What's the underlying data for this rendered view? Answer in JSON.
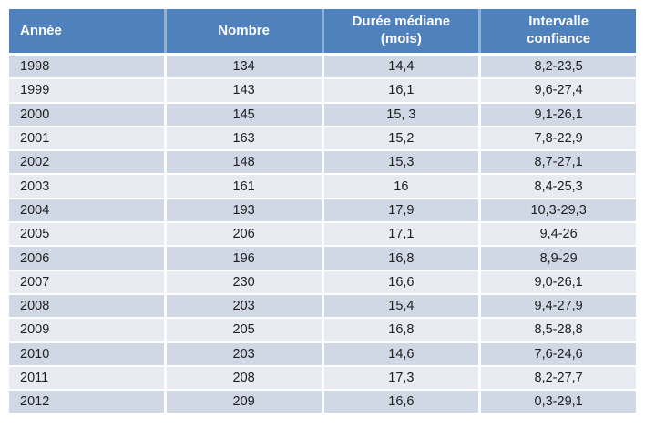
{
  "chart_data": {
    "type": "table",
    "title": "",
    "columns": [
      "Année",
      "Nombre",
      "Durée médiane (mois)",
      "Intervalle confiance"
    ],
    "rows": [
      [
        "1998",
        "134",
        "14,4",
        "8,2-23,5"
      ],
      [
        "1999",
        "143",
        "16,1",
        "9,6-27,4"
      ],
      [
        "2000",
        "145",
        "15, 3",
        "9,1-26,1"
      ],
      [
        "2001",
        "163",
        "15,2",
        "7,8-22,9"
      ],
      [
        "2002",
        "148",
        "15,3",
        "8,7-27,1"
      ],
      [
        "2003",
        "161",
        "16",
        "8,4-25,3"
      ],
      [
        "2004",
        "193",
        "17,9",
        "10,3-29,3"
      ],
      [
        "2005",
        "206",
        "17,1",
        "9,4-26"
      ],
      [
        "2006",
        "196",
        "16,8",
        "8,9-29"
      ],
      [
        "2007",
        "230",
        "16,6",
        "9,0-26,1"
      ],
      [
        "2008",
        "203",
        "15,4",
        "9,4-27,9"
      ],
      [
        "2009",
        "205",
        "16,8",
        "8,5-28,8"
      ],
      [
        "2010",
        "203",
        "14,6",
        "7,6-24,6"
      ],
      [
        "2011",
        "208",
        "17,3",
        "8,2-27,7"
      ],
      [
        "2012",
        "209",
        "16,6",
        "0,3-29,1"
      ]
    ],
    "layout": {
      "banded_rows": true,
      "first_band": "dark",
      "header_align": [
        "left",
        "center",
        "center",
        "center"
      ],
      "body_align": [
        "left",
        "center",
        "center",
        "center"
      ]
    },
    "colors": {
      "header_bg": "#4f81bd",
      "header_divider": "#93b1d3",
      "band_dark": "#d0d7e5",
      "band_light": "#e9ebf3",
      "text": "#1f1f1f",
      "header_text": "#ffffff"
    }
  }
}
